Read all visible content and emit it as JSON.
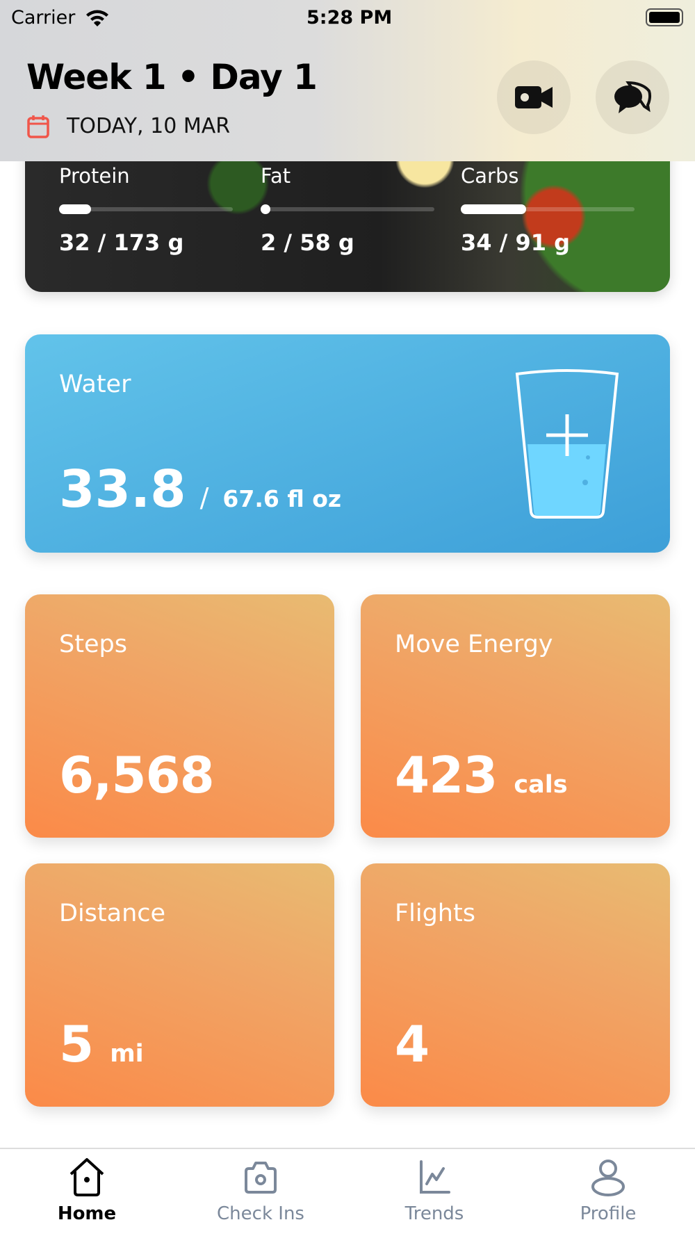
{
  "status_bar": {
    "carrier": "Carrier",
    "time": "5:28 PM"
  },
  "header": {
    "title": "Week 1 • Day 1",
    "date": "TODAY, 10 MAR",
    "icons": [
      "calendar-icon",
      "video-camera-icon",
      "chat-bubbles-icon"
    ]
  },
  "macros": [
    {
      "label": "Protein",
      "value": "32 / 173 g",
      "progress": 0.185
    },
    {
      "label": "Fat",
      "value": "2 / 58 g",
      "progress": 0.034
    },
    {
      "label": "Carbs",
      "value": "34 / 91 g",
      "progress": 0.374
    }
  ],
  "water": {
    "label": "Water",
    "value": "33.8",
    "separator": "/",
    "goal": "67.6 fl oz",
    "progress": 0.5,
    "icon": "water-glass-plus-icon"
  },
  "activity": [
    {
      "label": "Steps",
      "value": "6,568",
      "unit": ""
    },
    {
      "label": "Move Energy",
      "value": "423",
      "unit": "cals"
    },
    {
      "label": "Distance",
      "value": "5",
      "unit": "mi"
    },
    {
      "label": "Flights",
      "value": "4",
      "unit": ""
    }
  ],
  "tabs": [
    {
      "label": "Home",
      "icon": "home-icon",
      "active": true
    },
    {
      "label": "Check Ins",
      "icon": "camera-icon"
    },
    {
      "label": "Trends",
      "icon": "chart-icon"
    },
    {
      "label": "Profile",
      "icon": "profile-icon"
    }
  ],
  "colors": {
    "water": "#4fb0e2",
    "activity": "#f39a58",
    "calendar": "#f0564a",
    "tab_inactive": "#7b889a"
  }
}
